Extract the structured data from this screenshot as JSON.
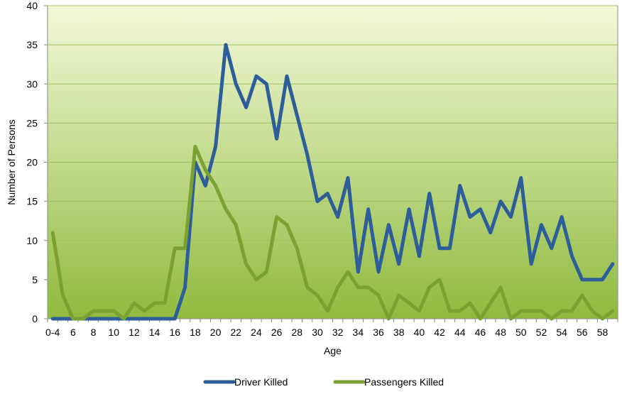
{
  "chart_data": {
    "type": "line",
    "title": "",
    "xlabel": "Age",
    "ylabel": "Number of Persons",
    "ylim": [
      0,
      40
    ],
    "yticks": [
      0,
      5,
      10,
      15,
      20,
      25,
      30,
      35,
      40
    ],
    "grid": true,
    "legend_position": "bottom",
    "background_gradient": [
      "#f4f9d9",
      "#8fba3e"
    ],
    "x": [
      "0-4",
      "5",
      "6",
      "7",
      "8",
      "9",
      "10",
      "11",
      "12",
      "13",
      "14",
      "15",
      "16",
      "17",
      "18",
      "19",
      "20",
      "21",
      "22",
      "23",
      "24",
      "25",
      "26",
      "27",
      "28",
      "29",
      "30",
      "31",
      "32",
      "33",
      "34",
      "35",
      "36",
      "37",
      "38",
      "39",
      "40",
      "41",
      "42",
      "43",
      "44",
      "45",
      "46",
      "47",
      "48",
      "49",
      "50",
      "51",
      "52",
      "53",
      "54",
      "55",
      "56",
      "57",
      "58",
      "59"
    ],
    "x_tick_labels": [
      "0-4",
      "6",
      "8",
      "10",
      "12",
      "14",
      "16",
      "18",
      "20",
      "22",
      "24",
      "26",
      "28",
      "30",
      "32",
      "34",
      "36",
      "38",
      "40",
      "42",
      "44",
      "46",
      "48",
      "50",
      "52",
      "54",
      "56",
      "58"
    ],
    "series": [
      {
        "name": "Driver Killed",
        "color": "#2e5e9a",
        "values": [
          0,
          0,
          0,
          0,
          0,
          0,
          0,
          0,
          0,
          0,
          0,
          0,
          0,
          4,
          20,
          17,
          22,
          35,
          30,
          27,
          31,
          30,
          23,
          31,
          26,
          21,
          15,
          16,
          13,
          18,
          6,
          14,
          6,
          12,
          7,
          14,
          8,
          16,
          9,
          9,
          17,
          13,
          14,
          11,
          15,
          13,
          18,
          7,
          12,
          9,
          13,
          8,
          5,
          5,
          5,
          7
        ]
      },
      {
        "name": "Passengers Killed",
        "color": "#7aa232",
        "values": [
          11,
          3,
          0,
          0,
          1,
          1,
          1,
          0,
          2,
          1,
          2,
          2,
          9,
          9,
          22,
          19,
          17,
          14,
          12,
          7,
          5,
          6,
          13,
          12,
          9,
          4,
          3,
          1,
          4,
          6,
          4,
          4,
          3,
          0,
          3,
          2,
          1,
          4,
          5,
          1,
          1,
          2,
          0,
          2,
          4,
          0,
          1,
          1,
          1,
          0,
          1,
          1,
          3,
          1,
          0,
          1
        ]
      }
    ]
  }
}
